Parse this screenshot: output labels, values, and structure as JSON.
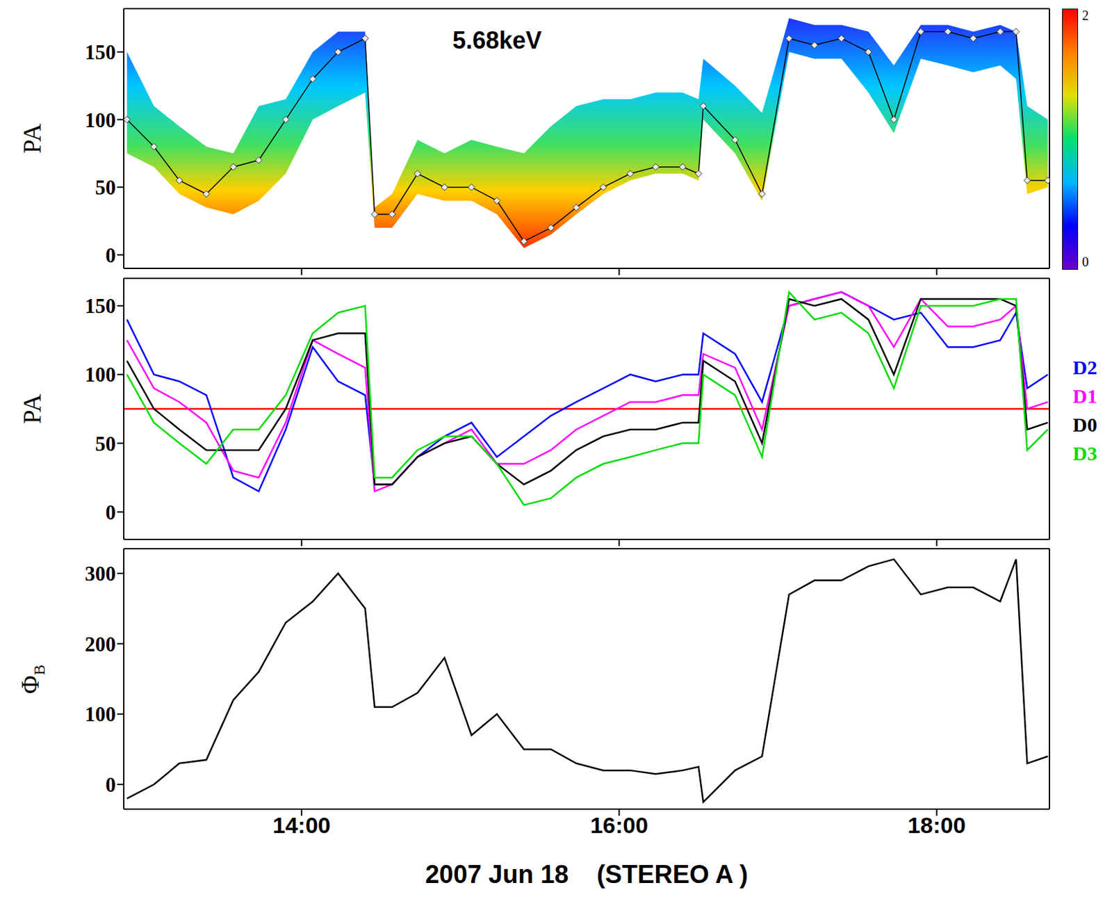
{
  "chart_data": [
    {
      "type": "spectrogram",
      "annotation": "5.68keV",
      "ylabel": "PA",
      "tick_labels": "y",
      "x": [
        12.9,
        13.07,
        13.23,
        13.4,
        13.57,
        13.73,
        13.9,
        14.07,
        14.23,
        14.4,
        14.46,
        14.57,
        14.73,
        14.9,
        15.07,
        15.23,
        15.4,
        15.57,
        15.73,
        15.9,
        16.07,
        16.23,
        16.4,
        16.5,
        16.53,
        16.73,
        16.9,
        17.07,
        17.23,
        17.4,
        17.57,
        17.73,
        17.9,
        18.07,
        18.23,
        18.4,
        18.5,
        18.57,
        18.7
      ],
      "xlim": [
        12.88,
        18.71
      ],
      "xticks": [
        {
          "value": 14,
          "label": "14:00"
        },
        {
          "value": 16,
          "label": "16:00"
        },
        {
          "value": 18,
          "label": "18:00"
        }
      ],
      "ylim": [
        -10,
        182
      ],
      "yticks": [
        0,
        50,
        100,
        150
      ],
      "band": {
        "low": [
          75,
          65,
          45,
          35,
          30,
          40,
          60,
          100,
          110,
          120,
          20,
          20,
          45,
          40,
          40,
          30,
          5,
          15,
          30,
          45,
          55,
          60,
          60,
          55,
          100,
          75,
          40,
          150,
          145,
          145,
          120,
          90,
          145,
          140,
          135,
          140,
          130,
          45,
          50
        ],
        "high": [
          150,
          110,
          95,
          80,
          75,
          110,
          115,
          150,
          165,
          165,
          35,
          45,
          85,
          75,
          85,
          80,
          75,
          95,
          110,
          115,
          115,
          120,
          120,
          115,
          145,
          125,
          105,
          175,
          170,
          170,
          165,
          140,
          170,
          170,
          165,
          170,
          165,
          110,
          100
        ]
      },
      "colorbar": {
        "range": [
          0,
          2
        ],
        "ticks": [
          0,
          2
        ]
      },
      "series": [
        {
          "color": "#000000",
          "marker": "diamond",
          "values": [
            100,
            80,
            55,
            45,
            65,
            70,
            100,
            130,
            150,
            160,
            30,
            30,
            60,
            50,
            50,
            40,
            10,
            20,
            35,
            50,
            60,
            65,
            65,
            60,
            110,
            85,
            45,
            160,
            155,
            160,
            150,
            100,
            165,
            165,
            160,
            165,
            165,
            55,
            55
          ]
        }
      ]
    },
    {
      "type": "line",
      "ylabel": "PA",
      "tick_labels": "y",
      "legend": "right",
      "x": [
        12.9,
        13.07,
        13.23,
        13.4,
        13.57,
        13.73,
        13.9,
        14.07,
        14.23,
        14.4,
        14.46,
        14.57,
        14.73,
        14.9,
        15.07,
        15.23,
        15.4,
        15.57,
        15.73,
        15.9,
        16.07,
        16.23,
        16.4,
        16.5,
        16.53,
        16.73,
        16.9,
        17.07,
        17.23,
        17.4,
        17.57,
        17.73,
        17.9,
        18.07,
        18.23,
        18.4,
        18.5,
        18.57,
        18.7
      ],
      "xlim": [
        12.88,
        18.71
      ],
      "xticks": [
        {
          "value": 14,
          "label": "14:00"
        },
        {
          "value": 16,
          "label": "16:00"
        },
        {
          "value": 18,
          "label": "18:00"
        }
      ],
      "ylim": [
        -20,
        170
      ],
      "yticks": [
        0,
        50,
        100,
        150
      ],
      "reference_line": {
        "value": 75,
        "color": "#ff0000"
      },
      "series": [
        {
          "name": "D2",
          "color": "#0000ff",
          "values": [
            140,
            100,
            95,
            85,
            25,
            15,
            60,
            120,
            95,
            85,
            20,
            20,
            40,
            55,
            65,
            40,
            55,
            70,
            80,
            90,
            100,
            95,
            100,
            100,
            130,
            115,
            80,
            150,
            155,
            160,
            150,
            140,
            145,
            120,
            120,
            125,
            145,
            90,
            100
          ]
        },
        {
          "name": "D1",
          "color": "#ff00ff",
          "values": [
            125,
            90,
            80,
            65,
            30,
            25,
            65,
            125,
            115,
            105,
            15,
            20,
            40,
            50,
            60,
            35,
            35,
            45,
            60,
            70,
            80,
            80,
            85,
            85,
            115,
            105,
            60,
            150,
            155,
            160,
            150,
            120,
            155,
            135,
            135,
            140,
            150,
            75,
            80
          ]
        },
        {
          "name": "D0",
          "color": "#000000",
          "values": [
            110,
            75,
            60,
            45,
            45,
            45,
            75,
            125,
            130,
            130,
            20,
            20,
            40,
            50,
            55,
            35,
            20,
            30,
            45,
            55,
            60,
            60,
            65,
            65,
            110,
            95,
            50,
            155,
            150,
            155,
            140,
            100,
            155,
            155,
            155,
            155,
            150,
            60,
            65
          ]
        },
        {
          "name": "D3",
          "color": "#00dd00",
          "values": [
            100,
            65,
            50,
            35,
            60,
            60,
            85,
            130,
            145,
            150,
            25,
            25,
            45,
            55,
            55,
            35,
            5,
            10,
            25,
            35,
            40,
            45,
            50,
            50,
            100,
            85,
            40,
            160,
            140,
            145,
            130,
            90,
            150,
            150,
            150,
            155,
            155,
            45,
            60
          ]
        }
      ]
    },
    {
      "type": "line",
      "ylabel": "Φ",
      "ylabel_subscript": "B",
      "xlabel": "2007 Jun 18    (STEREO A )",
      "x": [
        12.9,
        13.07,
        13.23,
        13.4,
        13.57,
        13.73,
        13.9,
        14.07,
        14.23,
        14.4,
        14.46,
        14.57,
        14.73,
        14.9,
        15.07,
        15.23,
        15.4,
        15.57,
        15.73,
        15.9,
        16.07,
        16.23,
        16.4,
        16.5,
        16.53,
        16.73,
        16.9,
        17.07,
        17.23,
        17.4,
        17.57,
        17.73,
        17.9,
        18.07,
        18.23,
        18.4,
        18.5,
        18.57,
        18.7
      ],
      "xlim": [
        12.88,
        18.71
      ],
      "xticks": [
        {
          "value": 14,
          "label": "14:00"
        },
        {
          "value": 16,
          "label": "16:00"
        },
        {
          "value": 18,
          "label": "18:00"
        }
      ],
      "ylim": [
        -35,
        335
      ],
      "yticks": [
        0,
        100,
        200,
        300
      ],
      "series": [
        {
          "color": "#000000",
          "values": [
            -20,
            0,
            30,
            35,
            120,
            160,
            230,
            260,
            300,
            250,
            110,
            110,
            130,
            180,
            70,
            100,
            50,
            50,
            30,
            20,
            20,
            15,
            20,
            25,
            -25,
            20,
            40,
            270,
            290,
            290,
            310,
            320,
            270,
            280,
            280,
            260,
            320,
            30,
            40
          ]
        }
      ]
    }
  ]
}
